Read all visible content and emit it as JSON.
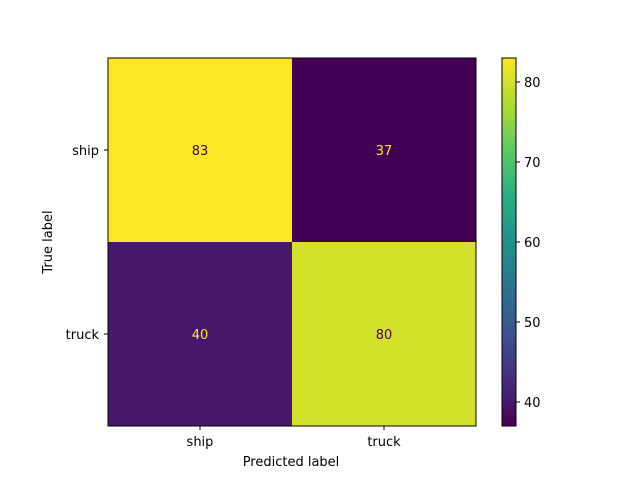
{
  "chart_data": {
    "type": "heatmap",
    "title": "",
    "xlabel": "Predicted label",
    "ylabel": "True label",
    "x_categories": [
      "ship",
      "truck"
    ],
    "y_categories": [
      "ship",
      "truck"
    ],
    "values": [
      [
        83,
        37
      ],
      [
        40,
        80
      ]
    ],
    "colormap": "viridis",
    "colorbar": {
      "range": [
        37,
        83
      ],
      "ticks": [
        40,
        50,
        60,
        70,
        80
      ]
    },
    "grid": false,
    "text_colors": {
      "on_dark": "#fde725",
      "on_light": "#440154"
    }
  }
}
